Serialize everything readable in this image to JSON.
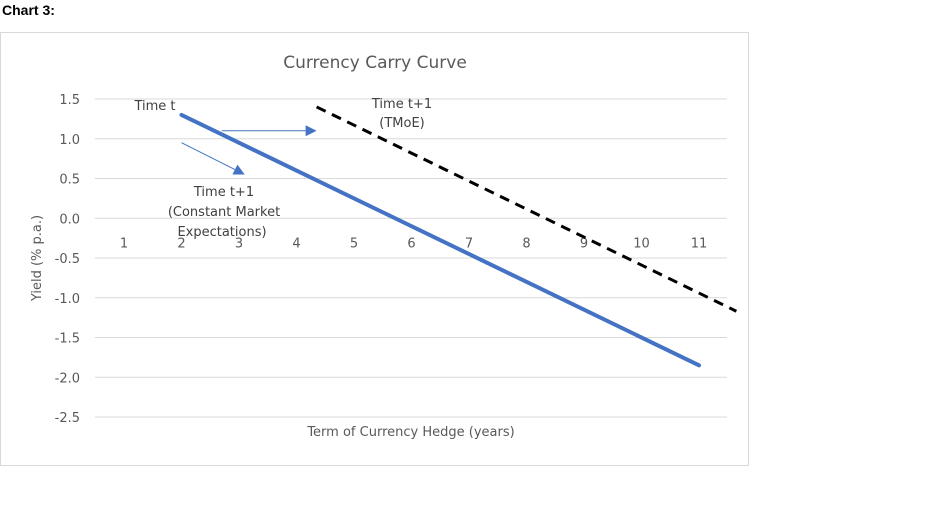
{
  "page": {
    "heading": "Chart 3:"
  },
  "chart_data": {
    "type": "line",
    "title": "Currency Carry Curve",
    "xlabel": "Term of Currency Hedge (years)",
    "ylabel": "Yield (% p.a.)",
    "x_categories": [
      "1",
      "2",
      "3",
      "4",
      "5",
      "6",
      "7",
      "8",
      "9",
      "10",
      "11"
    ],
    "y_ticks": [
      "1.5",
      "1.0",
      "0.5",
      "0.0",
      "-0.5",
      "-1.0",
      "-1.5",
      "-2.0",
      "-2.5"
    ],
    "ylim": [
      -2.5,
      1.5
    ],
    "grid": true,
    "series": [
      {
        "name": "Time t",
        "style": "solid",
        "color": "#4472c4",
        "points": [
          [
            2,
            1.3
          ],
          [
            11,
            -1.85
          ]
        ]
      },
      {
        "name": "Time t+1 (TMoE)",
        "style": "dashed",
        "color": "#000000",
        "points": [
          [
            4.35,
            1.4
          ],
          [
            11.65,
            -1.17
          ]
        ]
      }
    ],
    "annotations": {
      "time_t": "Time t",
      "tmoe_line1": "Time t+1",
      "tmoe_line2": "(TMoE)",
      "cme_line1": "Time t+1",
      "cme_line2": "(Constant  Market",
      "cme_line3": "Expectations)"
    },
    "arrows": [
      {
        "from": [
          2.7,
          1.1
        ],
        "to": [
          4.35,
          1.1
        ],
        "color": "#4472c4"
      },
      {
        "from": [
          2.0,
          0.95
        ],
        "to": [
          3.1,
          0.55
        ],
        "color": "#4472c4"
      }
    ]
  }
}
